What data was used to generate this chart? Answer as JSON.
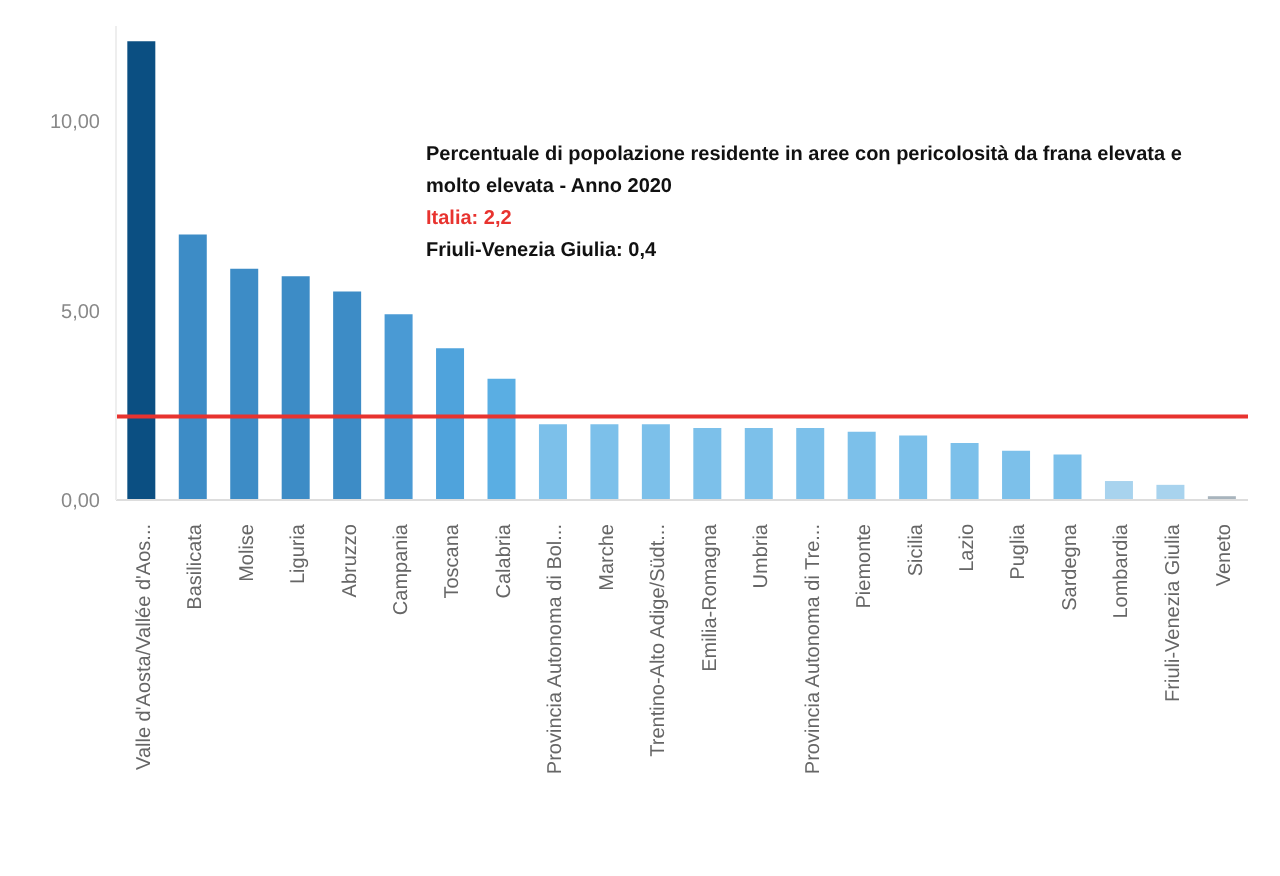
{
  "chart_data": {
    "type": "bar",
    "title": "Percentuale di popolazione residente in aree con pericolosità da frana elevata e molto elevata - Anno 2020",
    "categories": [
      "Valle d'Aosta/Vallée d'Aos...",
      "Basilicata",
      "Molise",
      "Liguria",
      "Abruzzo",
      "Campania",
      "Toscana",
      "Calabria",
      "Provincia Autonoma di Bol...",
      "Marche",
      "Trentino-Alto Adige/Südt...",
      "Emilia-Romagna",
      "Umbria",
      "Provincia Autonoma di Tre...",
      "Piemonte",
      "Sicilia",
      "Lazio",
      "Puglia",
      "Sardegna",
      "Lombardia",
      "Friuli-Venezia Giulia",
      "Veneto"
    ],
    "values": [
      12.1,
      7.0,
      6.1,
      5.9,
      5.5,
      4.9,
      4.0,
      3.2,
      2.0,
      2.0,
      2.0,
      1.9,
      1.9,
      1.9,
      1.8,
      1.7,
      1.5,
      1.3,
      1.2,
      0.5,
      0.4,
      0.1
    ],
    "colors": [
      "#0b4f82",
      "#3d8cc6",
      "#3d8cc6",
      "#3d8cc6",
      "#3d8cc6",
      "#4a9ad4",
      "#4fa3dc",
      "#5aaee3",
      "#7cc0ea",
      "#7cc0ea",
      "#7cc0ea",
      "#7cc0ea",
      "#7cc0ea",
      "#7cc0ea",
      "#7cc0ea",
      "#7cc0ea",
      "#7cc0ea",
      "#7cc0ea",
      "#7cc0ea",
      "#a8d3ee",
      "#a8d3ee",
      "#a8b4bd"
    ],
    "ylim": [
      0,
      12.5
    ],
    "yticks": [
      {
        "value": 0,
        "label": "0,00"
      },
      {
        "value": 5,
        "label": "5,00"
      },
      {
        "value": 10,
        "label": "10,00"
      }
    ],
    "grid": false,
    "legend": false,
    "ref_lines": [
      {
        "axis": "y",
        "value": 2.2,
        "label": "Italia: 2,2",
        "color": "#e8332f"
      }
    ],
    "annotations": [
      "Friuli-Venezia Giulia: 0,4"
    ]
  }
}
